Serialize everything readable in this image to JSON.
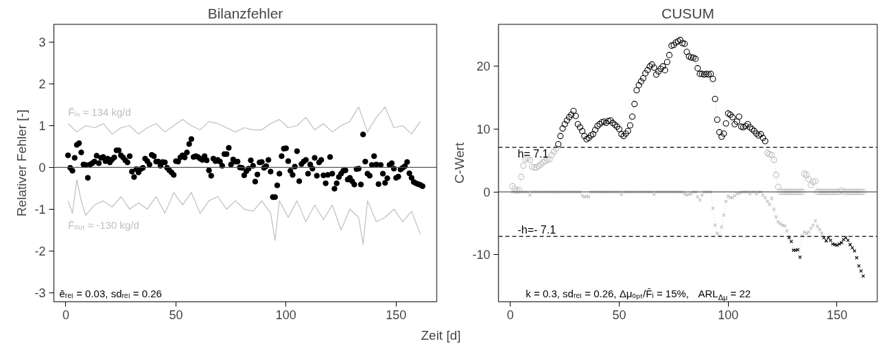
{
  "chart_data": [
    {
      "type": "scatter",
      "title": "Bilanzfehler",
      "xlabel": "Zeit [d]",
      "ylabel": "Relativer Fehler [-]",
      "xlim": [
        -5.44,
        168.44
      ],
      "xticks": [
        0,
        50,
        100,
        150
      ],
      "ylim": [
        -3.22,
        3.43
      ],
      "yticks": [
        -3,
        -2,
        -1,
        0,
        1,
        2,
        3
      ],
      "marker": "circle",
      "x": [
        1,
        2,
        3,
        4,
        5,
        6,
        7,
        8,
        9,
        10,
        11,
        12,
        13,
        14,
        15,
        16,
        17,
        18,
        19,
        20,
        21,
        22,
        23,
        24,
        25,
        26,
        27,
        28,
        29,
        30,
        31,
        32,
        33,
        34,
        35,
        36,
        37,
        38,
        39,
        40,
        41,
        42,
        43,
        44,
        45,
        46,
        47,
        48,
        49,
        50,
        51,
        52,
        53,
        54,
        55,
        56,
        57,
        58,
        59,
        60,
        61,
        62,
        63,
        64,
        65,
        66,
        67,
        68,
        69,
        70,
        71,
        72,
        73,
        74,
        75,
        76,
        77,
        78,
        79,
        80,
        81,
        82,
        83,
        84,
        85,
        86,
        87,
        88,
        89,
        90,
        91,
        92,
        93,
        94,
        95,
        96,
        97,
        98,
        99,
        100,
        101,
        102,
        103,
        104,
        105,
        106,
        107,
        108,
        109,
        110,
        111,
        112,
        113,
        114,
        115,
        116,
        117,
        118,
        119,
        120,
        121,
        122,
        123,
        124,
        125,
        126,
        127,
        128,
        129,
        130,
        131,
        132,
        133,
        134,
        135,
        136,
        137,
        138,
        139,
        140,
        141,
        142,
        143,
        144,
        145,
        146,
        147,
        148,
        149,
        150,
        151,
        152,
        153,
        154,
        155,
        156,
        157,
        158,
        159,
        160,
        161,
        162
      ],
      "ref_lines": [
        {
          "axis": "y",
          "value": 0,
          "color": "#555555",
          "line_style": "solid"
        }
      ],
      "annotations": [
        "ēᵣₑₗ = 0.03,  sdᵣₑₗ = 0.26"
      ],
      "series": [
        {
          "type": "line",
          "name": "F̄ᵢₙ ≈ 134 kg/d",
          "color": "#bebebe",
          "marker": "none",
          "x": [
            1,
            5,
            9,
            13,
            17,
            21,
            25,
            29,
            33,
            37,
            41,
            45,
            49,
            53,
            57,
            61,
            65,
            69,
            73,
            77,
            81,
            85,
            89,
            93,
            97,
            101,
            105,
            109,
            113,
            117,
            121,
            125,
            129,
            133,
            137,
            141,
            145,
            149,
            153,
            157,
            161
          ],
          "values": [
            1.05,
            0.85,
            1.0,
            0.95,
            1.05,
            0.8,
            0.95,
            1.0,
            0.8,
            0.95,
            1.05,
            0.85,
            1.0,
            1.15,
            1.0,
            0.9,
            1.1,
            1.05,
            0.95,
            0.85,
            0.95,
            0.9,
            0.9,
            1.05,
            1.15,
            0.95,
            1.0,
            1.2,
            0.9,
            1.05,
            0.85,
            1.0,
            1.1,
            1.45,
            0.85,
            1.2,
            1.45,
            0.95,
            1.0,
            0.8,
            1.1
          ]
        },
        {
          "type": "line",
          "name": "F̄ₒᵤₜ ≈ -130 kg/d",
          "color": "#bebebe",
          "marker": "none",
          "x": [
            1,
            3,
            5,
            7,
            9,
            13,
            17,
            21,
            25,
            29,
            33,
            37,
            41,
            45,
            49,
            53,
            57,
            61,
            65,
            69,
            73,
            77,
            81,
            85,
            89,
            93,
            95,
            97,
            101,
            105,
            109,
            113,
            117,
            121,
            125,
            129,
            133,
            135,
            137,
            141,
            145,
            149,
            153,
            157,
            161
          ],
          "values": [
            -0.8,
            -1.1,
            -0.3,
            -0.8,
            -1.15,
            -0.9,
            -0.8,
            -0.95,
            -0.7,
            -1.0,
            -0.85,
            -1.0,
            -0.7,
            -1.1,
            -0.6,
            -0.9,
            -0.6,
            -1.1,
            -0.8,
            -0.7,
            -1.0,
            -0.8,
            -1.0,
            -1.05,
            -0.8,
            -1.1,
            -1.75,
            -0.8,
            -1.2,
            -0.8,
            -1.3,
            -0.9,
            -1.25,
            -0.9,
            -1.5,
            -1.0,
            -1.2,
            -1.85,
            -0.8,
            -1.3,
            -1.2,
            -1.0,
            -1.3,
            -1.05,
            -1.6
          ]
        },
        {
          "color": "#000000",
          "values": [
            0.29,
            -0.01,
            -0.08,
            0.23,
            0.54,
            0.58,
            0.36,
            0.07,
            0.06,
            -0.25,
            0.07,
            0.1,
            0.14,
            0.28,
            0.1,
            0.23,
            0.25,
            0.15,
            0.21,
            0.12,
            0.19,
            0.24,
            0.41,
            0.41,
            0.29,
            0.24,
            0.17,
            0.12,
            0.27,
            -0.1,
            -0.23,
            -0.04,
            -0.12,
            -0.04,
            -0.01,
            0.21,
            0.15,
            0.07,
            0.3,
            0.27,
            0.14,
            0.14,
            0.04,
            0.13,
            0.12,
            -0.01,
            -0.07,
            -0.12,
            -0.18,
            0.15,
            0.14,
            0.24,
            0.29,
            0.24,
            0.36,
            0.56,
            0.68,
            0.25,
            0.27,
            0.25,
            0.21,
            0.18,
            0.27,
            0.17,
            -0.07,
            -0.2,
            0.21,
            0.15,
            0.18,
            0.14,
            0.04,
            0.32,
            0.32,
            0.47,
            0.07,
            0.19,
            0.14,
            0.14,
            0.0,
            -0.01,
            -0.19,
            -0.09,
            -0.03,
            0.17,
            0.04,
            -0.34,
            -0.17,
            0.12,
            0.13,
            -0.01,
            0.03,
            0.18,
            -0.1,
            -0.71,
            -0.71,
            -0.43,
            -0.15,
            0.27,
            0.45,
            0.46,
            0.15,
            -0.08,
            -0.18,
            0.02,
            0.39,
            -0.33,
            0.08,
            0.14,
            0.18,
            -0.15,
            0.07,
            -0.03,
            0.23,
            -0.2,
            0.12,
            0.18,
            -0.19,
            -0.38,
            -0.18,
            0.25,
            -0.15,
            -0.51,
            -0.38,
            -0.23,
            -0.15,
            -0.08,
            -0.07,
            -0.29,
            -0.25,
            -0.33,
            -0.41,
            -0.04,
            -0.03,
            -0.41,
            0.79,
            0.14,
            -0.15,
            -0.2,
            0.06,
            0.27,
            0.07,
            -0.4,
            0.06,
            -0.15,
            -0.37,
            -0.26,
            0.06,
            0.1,
            -0.03,
            -0.25,
            -0.22,
            -0.05,
            -0.01,
            0.03,
            0.13,
            -0.14,
            -0.25,
            -0.35,
            -0.38,
            -0.4,
            -0.42,
            -0.45
          ]
        }
      ]
    },
    {
      "type": "line",
      "title": "CUSUM",
      "ylabel": "C-Wert",
      "xlim": [
        -5.44,
        168.44
      ],
      "xticks": [
        0,
        50,
        100,
        150
      ],
      "ylim": [
        -17.5,
        26.7
      ],
      "yticks": [
        -10,
        0,
        10,
        20
      ],
      "line_style": "dotted",
      "x": [
        1,
        2,
        3,
        4,
        5,
        6,
        7,
        8,
        9,
        10,
        11,
        12,
        13,
        14,
        15,
        16,
        17,
        18,
        19,
        20,
        21,
        22,
        23,
        24,
        25,
        26,
        27,
        28,
        29,
        30,
        31,
        32,
        33,
        34,
        35,
        36,
        37,
        38,
        39,
        40,
        41,
        42,
        43,
        44,
        45,
        46,
        47,
        48,
        49,
        50,
        51,
        52,
        53,
        54,
        55,
        56,
        57,
        58,
        59,
        60,
        61,
        62,
        63,
        64,
        65,
        66,
        67,
        68,
        69,
        70,
        71,
        72,
        73,
        74,
        75,
        76,
        77,
        78,
        79,
        80,
        81,
        82,
        83,
        84,
        85,
        86,
        87,
        88,
        89,
        90,
        91,
        92,
        93,
        94,
        95,
        96,
        97,
        98,
        99,
        100,
        101,
        102,
        103,
        104,
        105,
        106,
        107,
        108,
        109,
        110,
        111,
        112,
        113,
        114,
        115,
        116,
        117,
        118,
        119,
        120,
        121,
        122,
        123,
        124,
        125,
        126,
        127,
        128,
        129,
        130,
        131,
        132,
        133,
        134,
        135,
        136,
        137,
        138,
        139,
        140,
        141,
        142,
        143,
        144,
        145,
        146,
        147,
        148,
        149,
        150,
        151,
        152,
        153,
        154,
        155,
        156,
        157,
        158,
        159,
        160,
        161,
        162
      ],
      "ref_lines": [
        {
          "axis": "y",
          "value": 0,
          "color": "#555555",
          "line_style": "solid"
        },
        {
          "axis": "y",
          "value": 7.1,
          "label": "h= 7.1",
          "color": "#000000",
          "line_style": "dashed"
        },
        {
          "axis": "y",
          "value": -7.1,
          "label": "-h=- 7.1",
          "color": "#000000",
          "line_style": "dashed"
        }
      ],
      "annotations": [
        "k = 0.3,  sdᵣₑₗ = 0.26,  Δμₒₚₜ/F̄ᵢ = 15%, ARL$_{Δμ}$ = 22"
      ],
      "series": [
        {
          "color": "#d0d0d0",
          "marker": "circle",
          "values": [
            0.9,
            0.5,
            0.2,
            0.3,
            2.4,
            4.2,
            5.2,
            5.4,
            5.1,
            4.0,
            3.9,
            3.9,
            4.1,
            4.4,
            4.7,
            4.9,
            5.1,
            5.2,
            5.9,
            6.4,
            6.9,
            7.6,
            8.9,
            10.1,
            10.8,
            11.4,
            11.9,
            12.3,
            12.9,
            12.1,
            10.8,
            10.3,
            9.7,
            8.9,
            8.4,
            8.6,
            9.0,
            9.2,
            9.9,
            10.5,
            10.8,
            11.1,
            11.2,
            11.0,
            11.3,
            11.4,
            11.0,
            10.7,
            10.4,
            10.0,
            9.2,
            8.9,
            9.3,
            9.7,
            10.6,
            12.0,
            14.0,
            16.2,
            17.0,
            17.6,
            18.1,
            18.9,
            19.4,
            20.0,
            20.3,
            19.8,
            18.7,
            19.2,
            19.6,
            20.0,
            19.4,
            20.7,
            21.8,
            23.3,
            23.4,
            23.8,
            24.0,
            24.2,
            23.7,
            23.6,
            22.3,
            21.6,
            21.4,
            21.4,
            21.2,
            19.7,
            18.8,
            18.8,
            18.7,
            18.8,
            18.7,
            18.8,
            18.0,
            14.8,
            11.5,
            9.5,
            8.8,
            9.3,
            10.9,
            12.5,
            12.3,
            11.9,
            10.8,
            11.2,
            12.0,
            10.4,
            10.3,
            10.5,
            10.8,
            10.3,
            10.0,
            9.7,
            9.3,
            9.0,
            9.2,
            8.6,
            8.1,
            6.2,
            6.0,
            5.9,
            5.1,
            2.7,
            0.8,
            0,
            0,
            0,
            0,
            0,
            0,
            0,
            0,
            0,
            0,
            0,
            2.9,
            2.7,
            2.0,
            1.1,
            1.6,
            1.7,
            0,
            0,
            0,
            0,
            0,
            0,
            0,
            0,
            0,
            0,
            0,
            0.2,
            0,
            0,
            0,
            0,
            0,
            0,
            0,
            0,
            0,
            0
          ],
          "colors": [
            "#bebebe",
            "#bebebe",
            "#bebebe",
            "#bebebe",
            "#bebebe",
            "#bebebe",
            "#bebebe",
            "#bebebe",
            "#bebebe",
            "#bebebe",
            "#bebebe",
            "#bebebe",
            "#bebebe",
            "#bebebe",
            "#bebebe",
            "#bebebe",
            "#bebebe",
            "#bebebe",
            "#bebebe",
            "#bebebe",
            "#bebebe",
            "#000000",
            "#000000",
            "#000000",
            "#000000",
            "#000000",
            "#000000",
            "#000000",
            "#000000",
            "#000000",
            "#000000",
            "#000000",
            "#000000",
            "#000000",
            "#000000",
            "#000000",
            "#000000",
            "#000000",
            "#000000",
            "#000000",
            "#000000",
            "#000000",
            "#000000",
            "#000000",
            "#000000",
            "#000000",
            "#000000",
            "#000000",
            "#000000",
            "#000000",
            "#000000",
            "#000000",
            "#000000",
            "#000000",
            "#000000",
            "#000000",
            "#000000",
            "#000000",
            "#000000",
            "#000000",
            "#000000",
            "#000000",
            "#000000",
            "#000000",
            "#000000",
            "#000000",
            "#000000",
            "#000000",
            "#000000",
            "#000000",
            "#000000",
            "#000000",
            "#000000",
            "#000000",
            "#000000",
            "#000000",
            "#000000",
            "#000000",
            "#000000",
            "#000000",
            "#000000",
            "#000000",
            "#000000",
            "#000000",
            "#000000",
            "#000000",
            "#000000",
            "#000000",
            "#000000",
            "#000000",
            "#000000",
            "#000000",
            "#000000",
            "#000000",
            "#000000",
            "#000000",
            "#000000",
            "#000000",
            "#000000",
            "#000000",
            "#000000",
            "#000000",
            "#000000",
            "#000000",
            "#000000",
            "#000000",
            "#000000",
            "#000000",
            "#000000",
            "#000000",
            "#000000",
            "#000000",
            "#000000",
            "#000000",
            "#000000",
            "#000000",
            "#000000",
            "#bebebe",
            "#bebebe",
            "#bebebe",
            "#bebebe",
            "#bebebe",
            "#bebebe",
            "#bebebe",
            "#bebebe",
            "#bebebe",
            "#bebebe",
            "#bebebe",
            "#bebebe",
            "#bebebe",
            "#bebebe",
            "#bebebe",
            "#bebebe",
            "#bebebe",
            "#bebebe",
            "#bebebe",
            "#bebebe",
            "#bebebe",
            "#bebebe",
            "#bebebe",
            "#bebebe",
            "#bebebe",
            "#bebebe",
            "#bebebe",
            "#bebebe",
            "#bebebe",
            "#bebebe",
            "#bebebe",
            "#bebebe",
            "#bebebe",
            "#bebebe",
            "#bebebe",
            "#bebebe",
            "#bebebe",
            "#bebebe",
            "#bebebe",
            "#bebebe",
            "#bebebe",
            "#bebebe",
            "#bebebe",
            "#bebebe",
            "#bebebe"
          ]
        },
        {
          "color": "#d0d0d0",
          "marker": "cross",
          "values": [
            0,
            0,
            0,
            0,
            0,
            0,
            0,
            0,
            -0.5,
            0,
            0,
            0,
            0,
            0,
            0,
            0,
            0,
            0,
            0,
            0,
            0,
            0,
            0,
            0,
            0,
            0,
            0,
            0,
            0,
            0,
            0,
            0,
            -0.6,
            -0.8,
            -0.7,
            -0.8,
            0,
            0,
            0,
            0,
            0,
            0,
            0,
            0,
            0,
            0,
            0,
            0,
            0,
            0,
            -0.4,
            0,
            0,
            0,
            0,
            0,
            0,
            0,
            0,
            0,
            0,
            0,
            0,
            0,
            0,
            -0.4,
            0,
            0,
            0,
            0,
            0,
            0,
            0,
            0,
            0,
            0,
            0,
            0,
            0,
            -0.3,
            -0.5,
            -0.4,
            -0.3,
            0,
            0,
            -0.8,
            -1.3,
            -0.5,
            0,
            0,
            0,
            0,
            -2.6,
            -5.3,
            -6.6,
            -7.0,
            -5.6,
            -3.7,
            -1.5,
            -0.7,
            -0.9,
            -0.9,
            -0.6,
            -0.3,
            -0.2,
            -0.1,
            0,
            0,
            0,
            -0.3,
            0,
            0,
            -0.3,
            0,
            0,
            -0.5,
            -0.9,
            -1.5,
            -2.0,
            -1.0,
            -2.8,
            -4.0,
            -4.8,
            -5.1,
            -5.3,
            -5.4,
            -6.2,
            -7.3,
            -7.9,
            -9.3,
            -9.3,
            -9.2,
            -10.4,
            -7.0,
            -6.4,
            -6.6,
            -6.4,
            -5.8,
            -5.3,
            -4.6,
            -5.5,
            -6.0,
            -6.6,
            -7.3,
            -7.8,
            -7.3,
            -7.7,
            -8.3,
            -8.4,
            -8.5,
            -8.3,
            -8.1,
            -7.6,
            -7.3,
            -7.7,
            -8.4,
            -8.9,
            -9.4,
            -10.5,
            -11.8,
            -12.6,
            -13.4
          ],
          "colors": [
            "#bebebe",
            "#bebebe",
            "#bebebe",
            "#bebebe",
            "#bebebe",
            "#bebebe",
            "#bebebe",
            "#bebebe",
            "#bebebe",
            "#bebebe",
            "#bebebe",
            "#bebebe",
            "#bebebe",
            "#bebebe",
            "#bebebe",
            "#bebebe",
            "#bebebe",
            "#bebebe",
            "#bebebe",
            "#bebebe",
            "#bebebe",
            "#bebebe",
            "#bebebe",
            "#bebebe",
            "#bebebe",
            "#bebebe",
            "#bebebe",
            "#bebebe",
            "#bebebe",
            "#bebebe",
            "#bebebe",
            "#bebebe",
            "#bebebe",
            "#bebebe",
            "#bebebe",
            "#bebebe",
            "#bebebe",
            "#bebebe",
            "#bebebe",
            "#bebebe",
            "#bebebe",
            "#bebebe",
            "#bebebe",
            "#bebebe",
            "#bebebe",
            "#bebebe",
            "#bebebe",
            "#bebebe",
            "#bebebe",
            "#bebebe",
            "#bebebe",
            "#bebebe",
            "#bebebe",
            "#bebebe",
            "#bebebe",
            "#bebebe",
            "#bebebe",
            "#bebebe",
            "#bebebe",
            "#bebebe",
            "#bebebe",
            "#bebebe",
            "#bebebe",
            "#bebebe",
            "#bebebe",
            "#bebebe",
            "#bebebe",
            "#bebebe",
            "#bebebe",
            "#bebebe",
            "#bebebe",
            "#bebebe",
            "#bebebe",
            "#bebebe",
            "#bebebe",
            "#bebebe",
            "#bebebe",
            "#bebebe",
            "#bebebe",
            "#bebebe",
            "#bebebe",
            "#bebebe",
            "#bebebe",
            "#bebebe",
            "#bebebe",
            "#bebebe",
            "#bebebe",
            "#bebebe",
            "#bebebe",
            "#bebebe",
            "#bebebe",
            "#bebebe",
            "#bebebe",
            "#bebebe",
            "#bebebe",
            "#bebebe",
            "#bebebe",
            "#bebebe",
            "#bebebe",
            "#bebebe",
            "#bebebe",
            "#bebebe",
            "#bebebe",
            "#bebebe",
            "#bebebe",
            "#bebebe",
            "#bebebe",
            "#bebebe",
            "#bebebe",
            "#bebebe",
            "#bebebe",
            "#bebebe",
            "#bebebe",
            "#bebebe",
            "#bebebe",
            "#bebebe",
            "#bebebe",
            "#bebebe",
            "#bebebe",
            "#bebebe",
            "#bebebe",
            "#bebebe",
            "#bebebe",
            "#bebebe",
            "#bebebe",
            "#bebebe",
            "#bebebe",
            "#000000",
            "#000000",
            "#000000",
            "#000000",
            "#000000",
            "#000000",
            "#bebebe",
            "#bebebe",
            "#bebebe",
            "#bebebe",
            "#bebebe",
            "#bebebe",
            "#bebebe",
            "#bebebe",
            "#bebebe",
            "#bebebe",
            "#000000",
            "#000000",
            "#000000",
            "#000000",
            "#000000",
            "#000000",
            "#000000",
            "#000000",
            "#000000",
            "#000000",
            "#000000",
            "#000000",
            "#000000",
            "#000000",
            "#000000",
            "#000000",
            "#000000",
            "#000000",
            "#000000"
          ]
        }
      ]
    }
  ]
}
